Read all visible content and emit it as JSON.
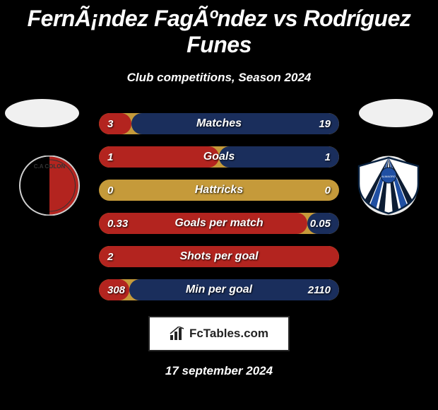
{
  "title": "FernÃ¡ndez FagÃºndez vs Rodríguez Funes",
  "subtitle": "Club competitions, Season 2024",
  "date": "17 september 2024",
  "branding": {
    "text": "FcTables.com"
  },
  "colors": {
    "bar_base": "#c59a3a",
    "fill_left": "#b3241f",
    "fill_right": "#1a2e5c",
    "background": "#000000",
    "ellipse": "#f0f0f0",
    "brand_bg": "#ffffff",
    "brand_text": "#222222"
  },
  "clubs": {
    "left": {
      "name": "C.A. Colon",
      "crest_bg_left": "#000000",
      "crest_bg_right": "#b3241f",
      "crest_ring": "#e8e8e8",
      "crest_text": "C.A COLON"
    },
    "right": {
      "name": "Almagro",
      "crest_bg": "#ffffff",
      "crest_outline": "#08213f",
      "stripe_dark": "#0c1c33",
      "stripe_blue": "#1f4fa3",
      "crest_text": "ALMAGRO"
    }
  },
  "metrics": [
    {
      "label": "Matches",
      "left_val": "3",
      "right_val": "19",
      "left_pct": 13.6,
      "right_pct": 86.4
    },
    {
      "label": "Goals",
      "left_val": "1",
      "right_val": "1",
      "left_pct": 50.0,
      "right_pct": 50.0
    },
    {
      "label": "Hattricks",
      "left_val": "0",
      "right_val": "0",
      "left_pct": 0.0,
      "right_pct": 0.0
    },
    {
      "label": "Goals per match",
      "left_val": "0.33",
      "right_val": "0.05",
      "left_pct": 86.8,
      "right_pct": 13.2
    },
    {
      "label": "Shots per goal",
      "left_val": "2",
      "right_val": "",
      "left_pct": 100.0,
      "right_pct": 0.0
    },
    {
      "label": "Min per goal",
      "left_val": "308",
      "right_val": "2110",
      "left_pct": 12.7,
      "right_pct": 87.3
    }
  ]
}
